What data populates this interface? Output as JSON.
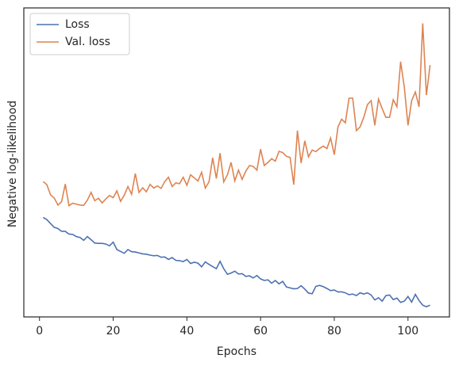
{
  "chart_data": {
    "type": "line",
    "x_label": "Epochs",
    "y_label": "Negative log-likelihood",
    "x": [
      1,
      2,
      3,
      4,
      5,
      6,
      7,
      8,
      9,
      10,
      11,
      12,
      13,
      14,
      15,
      16,
      17,
      18,
      19,
      20,
      21,
      22,
      23,
      24,
      25,
      26,
      27,
      28,
      29,
      30,
      31,
      32,
      33,
      34,
      35,
      36,
      37,
      38,
      39,
      40,
      41,
      42,
      43,
      44,
      45,
      46,
      47,
      48,
      49,
      50,
      51,
      52,
      53,
      54,
      55,
      56,
      57,
      58,
      59,
      60,
      61,
      62,
      63,
      64,
      65,
      66,
      67,
      68,
      69,
      70,
      71,
      72,
      73,
      74,
      75,
      76,
      77,
      78,
      79,
      80,
      81,
      82,
      83,
      84,
      85,
      86,
      87,
      88,
      89,
      90,
      91,
      92,
      93,
      94,
      95,
      96,
      97,
      98,
      99,
      100,
      101,
      102,
      103,
      104,
      105,
      106
    ],
    "series": [
      {
        "name": "Loss",
        "color": "#4c72b0",
        "values": [
          32.2,
          31.5,
          30.2,
          29,
          28.6,
          27.7,
          27.7,
          26.8,
          26.7,
          26,
          25.7,
          24.8,
          26,
          25,
          23.9,
          23.8,
          23.8,
          23.6,
          23,
          24.2,
          21.8,
          21.2,
          20.6,
          21.8,
          21.1,
          21,
          20.7,
          20.4,
          20.3,
          20,
          19.8,
          19.9,
          19.3,
          19.4,
          18.6,
          19.2,
          18.3,
          18.2,
          17.9,
          18.6,
          17.3,
          17.7,
          17.4,
          16.2,
          17.8,
          17,
          16.3,
          15.6,
          18,
          15.6,
          13.8,
          14.2,
          14.8,
          13.9,
          14,
          13.1,
          13.3,
          12.6,
          13.4,
          12.3,
          11.8,
          12,
          10.9,
          11.8,
          10.7,
          11.5,
          9.7,
          9.4,
          9.1,
          9.2,
          10.1,
          9,
          7.7,
          7.5,
          9.9,
          10.2,
          9.8,
          9.2,
          8.5,
          8.7,
          8.1,
          8.1,
          7.8,
          7.2,
          7.4,
          6.9,
          7.8,
          7.4,
          7.8,
          7.1,
          5.5,
          6.2,
          5.1,
          6.9,
          7.1,
          5.6,
          6.1,
          4.7,
          5.1,
          6.6,
          4.8,
          7.3,
          5.3,
          3.8,
          3.3,
          3.8
        ]
      },
      {
        "name": "Val. loss",
        "color": "#dd8452",
        "values": [
          43.8,
          42.8,
          39.5,
          38.5,
          36.2,
          37.3,
          43,
          36,
          36.8,
          36.5,
          36.2,
          36.1,
          37.8,
          40.3,
          37.6,
          38.4,
          36.9,
          38.2,
          39.3,
          38.6,
          40.8,
          37.4,
          39.4,
          42.2,
          39.7,
          46.4,
          40.3,
          41.8,
          40.5,
          42.9,
          41.7,
          42.4,
          41.6,
          43.8,
          45.2,
          42.2,
          43.4,
          43.1,
          45.2,
          42.6,
          46,
          45,
          44,
          46.8,
          41.7,
          43.7,
          51.5,
          44.8,
          53,
          43.7,
          46,
          50,
          44,
          47.5,
          44.5,
          47.2,
          49,
          48.7,
          47.5,
          54.3,
          49,
          50,
          51.2,
          50.4,
          53.6,
          53.2,
          52,
          51.6,
          42.8,
          60.3,
          49.8,
          57,
          51.8,
          54,
          53.5,
          54.5,
          55.3,
          54.5,
          57.9,
          52.5,
          61.5,
          64,
          62.8,
          70.8,
          70.8,
          60.3,
          61.5,
          64.6,
          68.7,
          70,
          62,
          70.5,
          67.4,
          64.6,
          64.6,
          70.3,
          68,
          82.6,
          74.4,
          62,
          70,
          72.8,
          68,
          95,
          71.8,
          81.5
        ]
      }
    ],
    "xlim": [
      -4.25,
      111.25
    ],
    "xticks": [
      0,
      20,
      40,
      60,
      80,
      100
    ],
    "ylim": [
      0,
      100
    ],
    "legend": "upper left"
  }
}
